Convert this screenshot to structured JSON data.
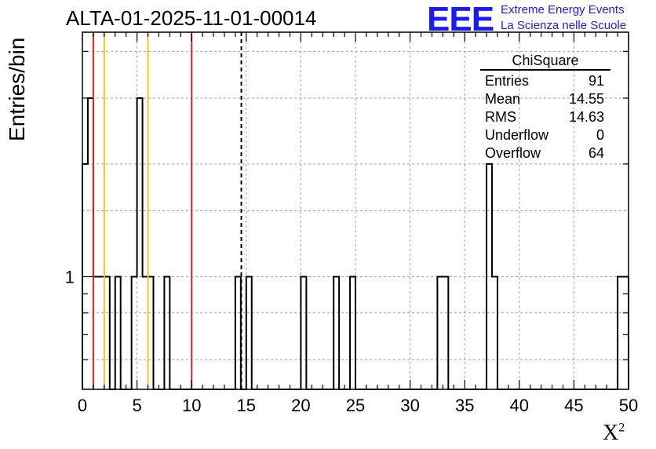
{
  "title": "ALTA-01-2025-11-01-00014",
  "logo": {
    "mark": "EEE",
    "line1": "Extreme Energy Events",
    "line2": "La Scienza nelle Scuole"
  },
  "colors": {
    "histogram": "#000000",
    "red_line": "#e8221c",
    "yellow_line": "#f5c518",
    "logo": "#1a1aff",
    "grid": "#a0a0a0"
  },
  "stats": {
    "name": "ChiSquare",
    "rows": [
      {
        "label": "Entries",
        "value": "91"
      },
      {
        "label": "Mean",
        "value": "14.55"
      },
      {
        "label": "RMS",
        "value": "14.63"
      },
      {
        "label": "Underflow",
        "value": "0"
      },
      {
        "label": "Overflow",
        "value": "64"
      }
    ]
  },
  "chart_data": {
    "type": "bar",
    "title": "ALTA-01-2025-11-01-00014",
    "xlabel": "X²",
    "ylabel": "Entries/bin",
    "xlim": [
      0,
      50
    ],
    "ylim": [
      0.5,
      4.5
    ],
    "log_y": true,
    "grid": true,
    "bin_width": 0.5,
    "x_ticks": [
      0,
      5,
      10,
      15,
      20,
      25,
      30,
      35,
      40,
      45,
      50
    ],
    "y_ticks": [
      1
    ],
    "bins": [
      {
        "x": 0.0,
        "y": 2
      },
      {
        "x": 0.5,
        "y": 3
      },
      {
        "x": 1.0,
        "y": 1
      },
      {
        "x": 1.5,
        "y": 1
      },
      {
        "x": 2.0,
        "y": 1
      },
      {
        "x": 3.0,
        "y": 1
      },
      {
        "x": 4.5,
        "y": 1
      },
      {
        "x": 5.0,
        "y": 3
      },
      {
        "x": 5.5,
        "y": 1
      },
      {
        "x": 6.0,
        "y": 1
      },
      {
        "x": 7.5,
        "y": 1
      },
      {
        "x": 14.0,
        "y": 1
      },
      {
        "x": 15.0,
        "y": 1
      },
      {
        "x": 20.0,
        "y": 1
      },
      {
        "x": 23.0,
        "y": 1
      },
      {
        "x": 24.5,
        "y": 1
      },
      {
        "x": 32.5,
        "y": 1
      },
      {
        "x": 33.0,
        "y": 1
      },
      {
        "x": 37.0,
        "y": 2
      },
      {
        "x": 37.5,
        "y": 1
      },
      {
        "x": 49.0,
        "y": 1
      },
      {
        "x": 49.5,
        "y": 1
      }
    ],
    "vertical_lines": [
      {
        "x": 1,
        "color": "#e8221c",
        "style": "solid"
      },
      {
        "x": 2,
        "color": "#f5c518",
        "style": "solid"
      },
      {
        "x": 6,
        "color": "#f5c518",
        "style": "solid"
      },
      {
        "x": 10,
        "color": "#e8221c",
        "style": "solid"
      },
      {
        "x": 14.55,
        "color": "#000000",
        "style": "dashed"
      }
    ]
  }
}
